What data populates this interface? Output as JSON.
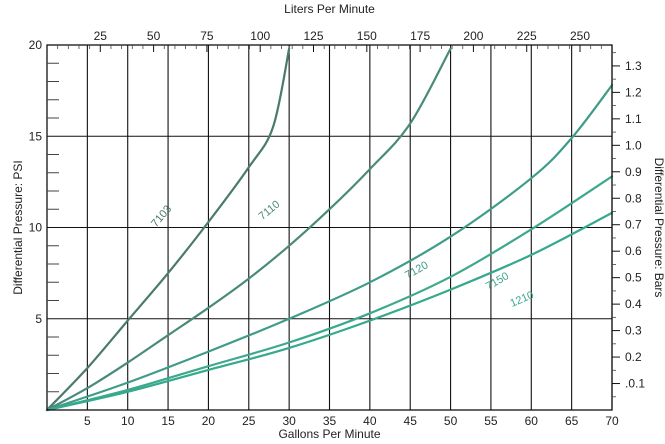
{
  "chart_data": {
    "type": "line",
    "title": "",
    "xlabel": "Gallons Per Minute",
    "ylabel": "Differential Pressure: PSI",
    "x2label": "Liters Per Minute",
    "y2label": "Differential Pressure: Bars",
    "xlim": [
      0,
      70
    ],
    "ylim": [
      0,
      20
    ],
    "x2lim": [
      0,
      265
    ],
    "y2lim": [
      0,
      1.379
    ],
    "grid": true,
    "legend": "none",
    "colors": {
      "frame": "#111111",
      "grid": "#111111",
      "minor_tick": "#444444",
      "series": [
        "#4a7a6c",
        "#4a8a7a",
        "#3f9c88",
        "#3da88e",
        "#35a98c"
      ]
    },
    "x_ticks": [
      5,
      10,
      15,
      20,
      25,
      30,
      35,
      40,
      45,
      50,
      55,
      60,
      65,
      70
    ],
    "x_tick_labels": [
      "5",
      "10",
      "15",
      "20",
      "25",
      "30",
      "35",
      "40",
      "45",
      "50",
      "55",
      "60",
      "65",
      "70"
    ],
    "y_ticks": [
      5,
      10,
      15,
      20
    ],
    "y_tick_labels": [
      "5",
      "10",
      "15",
      "20"
    ],
    "x2_ticks": [
      25,
      50,
      75,
      100,
      125,
      150,
      175,
      200,
      225,
      250
    ],
    "x2_tick_labels": [
      "25",
      "50",
      "75",
      "100",
      "125",
      "150",
      "175",
      "200",
      "225",
      "250"
    ],
    "y2_ticks": [
      0.1,
      0.2,
      0.3,
      0.4,
      0.5,
      0.6,
      0.7,
      0.8,
      0.9,
      1.0,
      1.1,
      1.2,
      1.3
    ],
    "y2_tick_labels": [
      ".0.1",
      "0.2",
      "0.3",
      "0.4",
      "0.5",
      "0.6",
      "0.7",
      "0.8",
      "0.9",
      "1.0",
      "1.1",
      "1.2",
      "1.3"
    ],
    "series": [
      {
        "name": "7103",
        "x": [
          0,
          5,
          10,
          15,
          20,
          25,
          28,
          30
        ],
        "y": [
          0,
          2.3,
          4.9,
          7.5,
          10.3,
          13.3,
          15.5,
          19.8
        ]
      },
      {
        "name": "7110",
        "x": [
          0,
          5,
          10,
          15,
          20,
          25,
          30,
          35,
          40,
          45,
          50
        ],
        "y": [
          0,
          1.2,
          2.6,
          4.1,
          5.6,
          7.2,
          9.0,
          11.0,
          13.2,
          15.7,
          19.8
        ]
      },
      {
        "name": "7120",
        "x": [
          0,
          10,
          20,
          30,
          40,
          50,
          60,
          65,
          70
        ],
        "y": [
          0,
          1.5,
          3.2,
          5.0,
          7.0,
          9.5,
          12.7,
          14.9,
          17.8
        ]
      },
      {
        "name": "7150",
        "x": [
          0,
          10,
          20,
          30,
          40,
          50,
          60,
          70
        ],
        "y": [
          0,
          1.1,
          2.4,
          3.7,
          5.3,
          7.3,
          9.9,
          12.8
        ]
      },
      {
        "name": "1210",
        "x": [
          0,
          10,
          20,
          30,
          40,
          50,
          60,
          70
        ],
        "y": [
          0,
          1.0,
          2.2,
          3.4,
          4.9,
          6.6,
          8.5,
          10.8
        ]
      }
    ],
    "annotations": [
      {
        "text": "7103",
        "x": 14.5,
        "y": 10.5
      },
      {
        "text": "7110",
        "x": 27.8,
        "y": 10.8
      },
      {
        "text": "7120",
        "x": 46,
        "y": 7.5
      },
      {
        "text": "7150",
        "x": 56,
        "y": 6.9
      },
      {
        "text": "1210",
        "x": 59,
        "y": 5.9
      }
    ]
  }
}
